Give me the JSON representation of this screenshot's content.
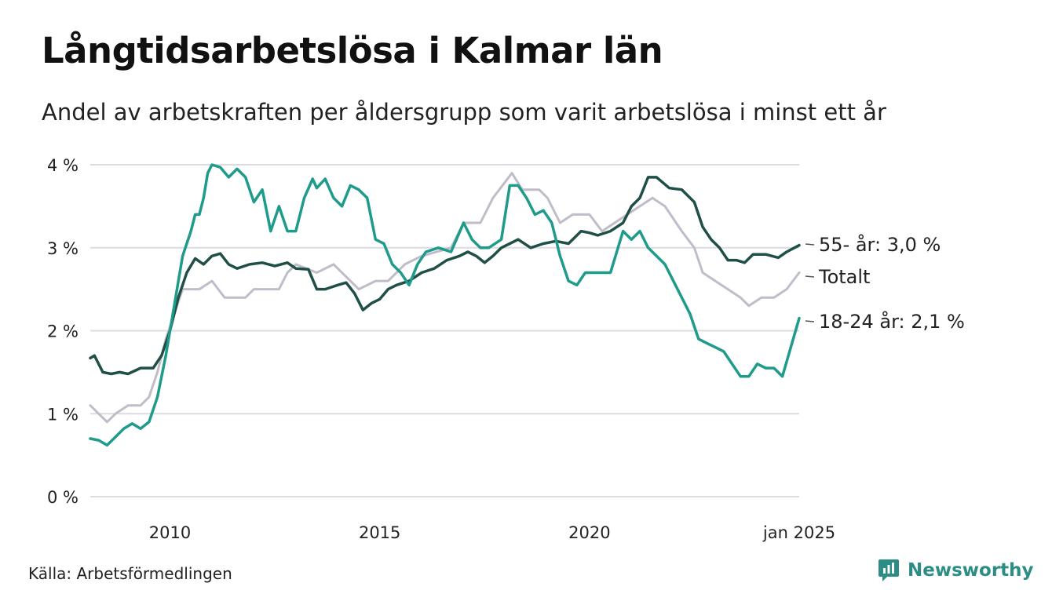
{
  "header": {
    "title": "Långtidsarbetslösa i Kalmar län",
    "subtitle": "Andel av arbetskraften per åldersgrupp som varit arbetslösa i minst ett år"
  },
  "footer": {
    "source": "Källa: Arbetsförmedlingen",
    "brand": "Newsworthy",
    "brand_color": "#2b8d84"
  },
  "chart_data": {
    "type": "line",
    "x_range": [
      2008.1,
      2025.0
    ],
    "ylim": [
      0,
      4
    ],
    "grid": true,
    "y_ticks": [
      {
        "value": 0,
        "label": "0 %"
      },
      {
        "value": 1,
        "label": "1 %"
      },
      {
        "value": 2,
        "label": "2 %"
      },
      {
        "value": 3,
        "label": "3 %"
      },
      {
        "value": 4,
        "label": "4 %"
      }
    ],
    "x_ticks": [
      {
        "value": 2010,
        "label": "2010"
      },
      {
        "value": 2015,
        "label": "2015"
      },
      {
        "value": 2020,
        "label": "2020"
      },
      {
        "value": 2025,
        "label": "jan 2025"
      }
    ],
    "series": [
      {
        "name": "Totalt",
        "label": "Totalt",
        "color": "#c0bcc9",
        "points": [
          [
            2008.1,
            1.1
          ],
          [
            2008.3,
            1.0
          ],
          [
            2008.5,
            0.9
          ],
          [
            2008.7,
            1.0
          ],
          [
            2009.0,
            1.1
          ],
          [
            2009.3,
            1.1
          ],
          [
            2009.5,
            1.2
          ],
          [
            2009.7,
            1.5
          ],
          [
            2009.9,
            1.9
          ],
          [
            2010.1,
            2.2
          ],
          [
            2010.3,
            2.5
          ],
          [
            2010.7,
            2.5
          ],
          [
            2011.0,
            2.6
          ],
          [
            2011.3,
            2.4
          ],
          [
            2011.8,
            2.4
          ],
          [
            2012.0,
            2.5
          ],
          [
            2012.6,
            2.5
          ],
          [
            2012.8,
            2.7
          ],
          [
            2013.0,
            2.8
          ],
          [
            2013.5,
            2.7
          ],
          [
            2013.9,
            2.8
          ],
          [
            2014.3,
            2.6
          ],
          [
            2014.5,
            2.5
          ],
          [
            2014.9,
            2.6
          ],
          [
            2015.2,
            2.6
          ],
          [
            2015.6,
            2.8
          ],
          [
            2016.0,
            2.9
          ],
          [
            2016.7,
            3.0
          ],
          [
            2017.0,
            3.3
          ],
          [
            2017.4,
            3.3
          ],
          [
            2017.7,
            3.6
          ],
          [
            2018.0,
            3.8
          ],
          [
            2018.15,
            3.9
          ],
          [
            2018.4,
            3.7
          ],
          [
            2018.8,
            3.7
          ],
          [
            2019.0,
            3.6
          ],
          [
            2019.3,
            3.3
          ],
          [
            2019.6,
            3.4
          ],
          [
            2020.0,
            3.4
          ],
          [
            2020.3,
            3.2
          ],
          [
            2020.6,
            3.3
          ],
          [
            2020.9,
            3.4
          ],
          [
            2021.2,
            3.5
          ],
          [
            2021.5,
            3.6
          ],
          [
            2021.8,
            3.5
          ],
          [
            2022.2,
            3.2
          ],
          [
            2022.5,
            3.0
          ],
          [
            2022.7,
            2.7
          ],
          [
            2023.0,
            2.6
          ],
          [
            2023.3,
            2.5
          ],
          [
            2023.6,
            2.4
          ],
          [
            2023.8,
            2.3
          ],
          [
            2024.1,
            2.4
          ],
          [
            2024.4,
            2.4
          ],
          [
            2024.7,
            2.5
          ],
          [
            2025.0,
            2.7
          ]
        ]
      },
      {
        "name": "55- år",
        "label": "55- år: 3,0 %",
        "color": "#1f4f47",
        "points": [
          [
            2008.1,
            1.67
          ],
          [
            2008.2,
            1.7
          ],
          [
            2008.4,
            1.5
          ],
          [
            2008.6,
            1.48
          ],
          [
            2008.8,
            1.5
          ],
          [
            2009.0,
            1.48
          ],
          [
            2009.3,
            1.55
          ],
          [
            2009.6,
            1.55
          ],
          [
            2009.8,
            1.7
          ],
          [
            2010.0,
            2.0
          ],
          [
            2010.2,
            2.4
          ],
          [
            2010.4,
            2.7
          ],
          [
            2010.6,
            2.87
          ],
          [
            2010.8,
            2.8
          ],
          [
            2011.0,
            2.9
          ],
          [
            2011.2,
            2.93
          ],
          [
            2011.4,
            2.8
          ],
          [
            2011.6,
            2.75
          ],
          [
            2011.9,
            2.8
          ],
          [
            2012.2,
            2.82
          ],
          [
            2012.5,
            2.78
          ],
          [
            2012.8,
            2.82
          ],
          [
            2013.0,
            2.75
          ],
          [
            2013.3,
            2.74
          ],
          [
            2013.5,
            2.5
          ],
          [
            2013.7,
            2.5
          ],
          [
            2014.0,
            2.55
          ],
          [
            2014.2,
            2.58
          ],
          [
            2014.4,
            2.45
          ],
          [
            2014.6,
            2.25
          ],
          [
            2014.8,
            2.33
          ],
          [
            2015.0,
            2.38
          ],
          [
            2015.2,
            2.5
          ],
          [
            2015.4,
            2.55
          ],
          [
            2015.7,
            2.6
          ],
          [
            2016.0,
            2.7
          ],
          [
            2016.3,
            2.75
          ],
          [
            2016.6,
            2.85
          ],
          [
            2016.9,
            2.9
          ],
          [
            2017.1,
            2.95
          ],
          [
            2017.3,
            2.9
          ],
          [
            2017.5,
            2.82
          ],
          [
            2017.7,
            2.9
          ],
          [
            2017.9,
            3.0
          ],
          [
            2018.1,
            3.05
          ],
          [
            2018.3,
            3.1
          ],
          [
            2018.6,
            3.0
          ],
          [
            2018.9,
            3.05
          ],
          [
            2019.2,
            3.08
          ],
          [
            2019.5,
            3.05
          ],
          [
            2019.8,
            3.2
          ],
          [
            2020.0,
            3.18
          ],
          [
            2020.2,
            3.15
          ],
          [
            2020.5,
            3.2
          ],
          [
            2020.8,
            3.3
          ],
          [
            2021.0,
            3.5
          ],
          [
            2021.2,
            3.6
          ],
          [
            2021.4,
            3.85
          ],
          [
            2021.6,
            3.85
          ],
          [
            2021.9,
            3.72
          ],
          [
            2022.2,
            3.7
          ],
          [
            2022.5,
            3.55
          ],
          [
            2022.7,
            3.25
          ],
          [
            2022.9,
            3.1
          ],
          [
            2023.1,
            3.0
          ],
          [
            2023.3,
            2.85
          ],
          [
            2023.5,
            2.85
          ],
          [
            2023.7,
            2.82
          ],
          [
            2023.9,
            2.92
          ],
          [
            2024.2,
            2.92
          ],
          [
            2024.5,
            2.88
          ],
          [
            2024.7,
            2.95
          ],
          [
            2025.0,
            3.03
          ]
        ]
      },
      {
        "name": "18-24 år",
        "label": "18-24 år: 2,1 %",
        "color": "#1e9b8a",
        "points": [
          [
            2008.1,
            0.7
          ],
          [
            2008.3,
            0.68
          ],
          [
            2008.5,
            0.62
          ],
          [
            2008.7,
            0.72
          ],
          [
            2008.9,
            0.82
          ],
          [
            2009.1,
            0.88
          ],
          [
            2009.3,
            0.82
          ],
          [
            2009.5,
            0.9
          ],
          [
            2009.7,
            1.2
          ],
          [
            2009.9,
            1.7
          ],
          [
            2010.1,
            2.3
          ],
          [
            2010.3,
            2.9
          ],
          [
            2010.5,
            3.2
          ],
          [
            2010.6,
            3.4
          ],
          [
            2010.7,
            3.4
          ],
          [
            2010.8,
            3.6
          ],
          [
            2010.9,
            3.9
          ],
          [
            2011.0,
            4.0
          ],
          [
            2011.2,
            3.97
          ],
          [
            2011.4,
            3.85
          ],
          [
            2011.6,
            3.95
          ],
          [
            2011.8,
            3.85
          ],
          [
            2012.0,
            3.55
          ],
          [
            2012.2,
            3.7
          ],
          [
            2012.4,
            3.2
          ],
          [
            2012.6,
            3.5
          ],
          [
            2012.8,
            3.2
          ],
          [
            2013.0,
            3.2
          ],
          [
            2013.2,
            3.6
          ],
          [
            2013.4,
            3.83
          ],
          [
            2013.5,
            3.72
          ],
          [
            2013.7,
            3.83
          ],
          [
            2013.9,
            3.6
          ],
          [
            2014.1,
            3.5
          ],
          [
            2014.3,
            3.75
          ],
          [
            2014.5,
            3.7
          ],
          [
            2014.7,
            3.6
          ],
          [
            2014.9,
            3.1
          ],
          [
            2015.1,
            3.05
          ],
          [
            2015.3,
            2.8
          ],
          [
            2015.5,
            2.7
          ],
          [
            2015.7,
            2.55
          ],
          [
            2015.9,
            2.8
          ],
          [
            2016.1,
            2.95
          ],
          [
            2016.4,
            3.0
          ],
          [
            2016.7,
            2.95
          ],
          [
            2017.0,
            3.3
          ],
          [
            2017.2,
            3.1
          ],
          [
            2017.4,
            3.0
          ],
          [
            2017.6,
            3.0
          ],
          [
            2017.9,
            3.1
          ],
          [
            2018.1,
            3.75
          ],
          [
            2018.3,
            3.75
          ],
          [
            2018.5,
            3.6
          ],
          [
            2018.7,
            3.4
          ],
          [
            2018.9,
            3.45
          ],
          [
            2019.1,
            3.3
          ],
          [
            2019.3,
            2.9
          ],
          [
            2019.5,
            2.6
          ],
          [
            2019.7,
            2.55
          ],
          [
            2019.9,
            2.7
          ],
          [
            2020.1,
            2.7
          ],
          [
            2020.3,
            2.7
          ],
          [
            2020.5,
            2.7
          ],
          [
            2020.8,
            3.2
          ],
          [
            2021.0,
            3.1
          ],
          [
            2021.2,
            3.2
          ],
          [
            2021.4,
            3.0
          ],
          [
            2021.6,
            2.9
          ],
          [
            2021.8,
            2.8
          ],
          [
            2022.0,
            2.6
          ],
          [
            2022.2,
            2.4
          ],
          [
            2022.4,
            2.2
          ],
          [
            2022.6,
            1.9
          ],
          [
            2022.8,
            1.85
          ],
          [
            2023.0,
            1.8
          ],
          [
            2023.2,
            1.75
          ],
          [
            2023.4,
            1.6
          ],
          [
            2023.6,
            1.45
          ],
          [
            2023.8,
            1.45
          ],
          [
            2024.0,
            1.6
          ],
          [
            2024.2,
            1.55
          ],
          [
            2024.4,
            1.55
          ],
          [
            2024.6,
            1.45
          ],
          [
            2024.8,
            1.8
          ],
          [
            2025.0,
            2.15
          ]
        ]
      }
    ]
  }
}
